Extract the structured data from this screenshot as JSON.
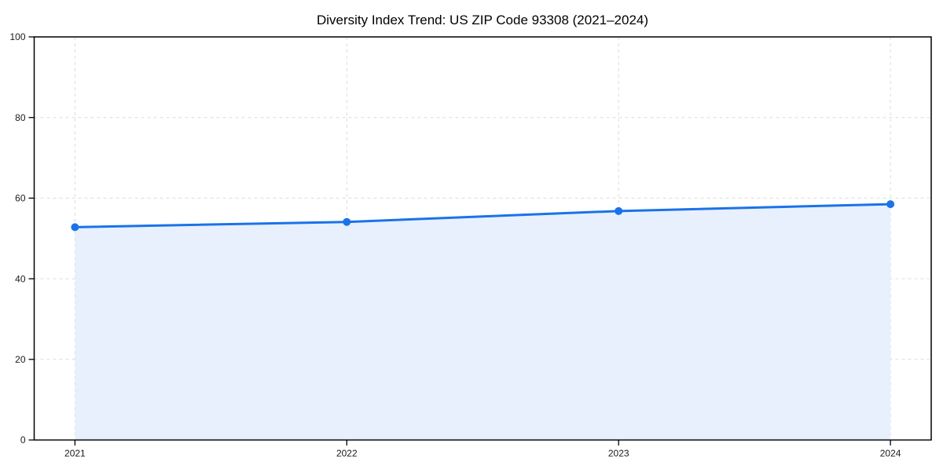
{
  "title": "Diversity Index Trend: US ZIP Code 93308 (2021–2024)",
  "colors": {
    "line": "#1a73e8",
    "marker": "#1a73e8",
    "area_fill": "#e8f0fe",
    "grid": "#dcdcdc",
    "axis": "#000000",
    "tick_label": "#1a1a1a",
    "background": "#ffffff"
  },
  "chart_data": {
    "type": "area",
    "title": "Diversity Index Trend: US ZIP Code 93308 (2021–2024)",
    "x": [
      2021,
      2022,
      2023,
      2024
    ],
    "categories": [
      "2021",
      "2022",
      "2023",
      "2024"
    ],
    "series": [
      {
        "name": "Diversity Index",
        "values": [
          52.8,
          54.1,
          56.8,
          58.5
        ]
      }
    ],
    "xlabel": "",
    "ylabel": "",
    "ylim": [
      0,
      100
    ],
    "yticks": [
      0,
      20,
      40,
      60,
      80,
      100
    ],
    "xticks": [
      "2021",
      "2022",
      "2023",
      "2024"
    ],
    "grid": true,
    "grid_style": "dashed",
    "legend_position": "none",
    "marker": "circle",
    "fill_to_zero": true,
    "x_margin_frac": 0.05
  }
}
